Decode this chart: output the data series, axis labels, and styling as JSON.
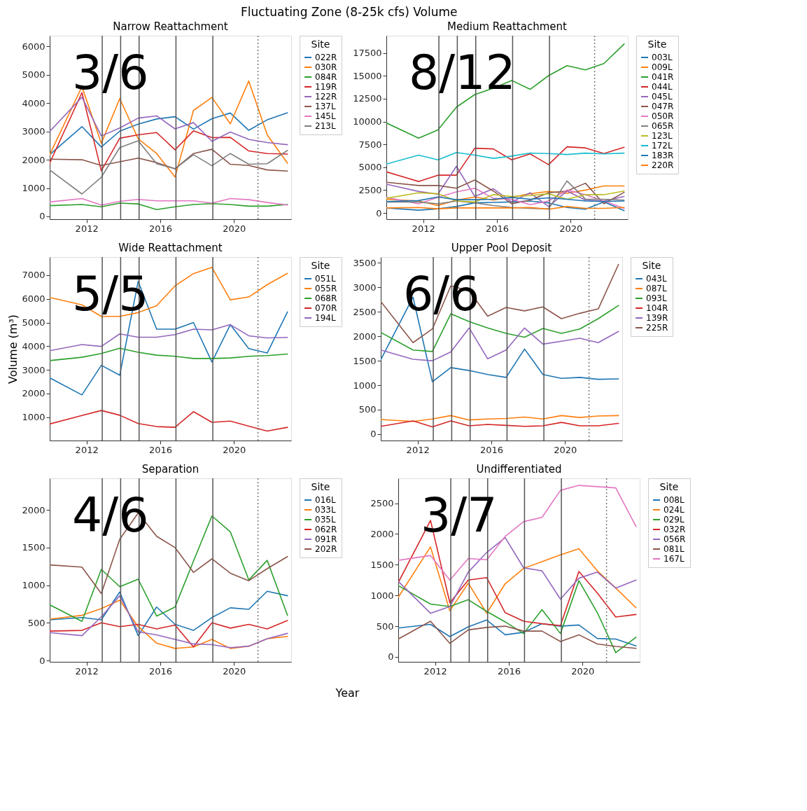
{
  "chart_data": [
    {
      "type": "line",
      "title": "Narrow Reattachment",
      "legend_title": "Site",
      "legend": "right",
      "grid": false,
      "line_style": "solid",
      "x": [
        2010.0,
        2011.75,
        2012.8,
        2013.8,
        2014.8,
        2015.8,
        2016.8,
        2017.8,
        2018.8,
        2019.8,
        2020.8,
        2021.8,
        2022.9
      ],
      "xlim": [
        2010.0,
        2023.1
      ],
      "xticks": [
        2012,
        2016,
        2020
      ],
      "ylim": [
        -100,
        6380
      ],
      "yticks": [
        0,
        1000,
        2000,
        3000,
        4000,
        5000,
        6000
      ],
      "series": [
        {
          "name": "022R",
          "color": "#1f77b4",
          "values": [
            2180,
            3170,
            2450,
            3010,
            3260,
            3440,
            3520,
            3080,
            3450,
            3650,
            3040,
            3410,
            3660
          ]
        },
        {
          "name": "030R",
          "color": "#ff7f0e",
          "values": [
            2180,
            4580,
            2580,
            4160,
            2740,
            2220,
            1390,
            3740,
            4200,
            3270,
            4780,
            2880,
            1880
          ]
        },
        {
          "name": "084R",
          "color": "#2ca02c",
          "values": [
            380,
            420,
            340,
            470,
            440,
            240,
            340,
            420,
            450,
            420,
            360,
            360,
            420
          ]
        },
        {
          "name": "119R",
          "color": "#d62728",
          "values": [
            1880,
            4370,
            1610,
            2760,
            2880,
            2960,
            2350,
            3020,
            2780,
            2790,
            2310,
            2220,
            2200
          ]
        },
        {
          "name": "122R",
          "color": "#9467bd",
          "values": [
            3000,
            4210,
            2840,
            3120,
            3470,
            3550,
            3090,
            3310,
            2650,
            2980,
            2720,
            2610,
            2530
          ]
        },
        {
          "name": "137L",
          "color": "#8c564b",
          "values": [
            2020,
            2000,
            1800,
            1930,
            2060,
            1900,
            1680,
            2220,
            2370,
            1840,
            1800,
            1640,
            1600
          ]
        },
        {
          "name": "145L",
          "color": "#e377c2",
          "values": [
            510,
            630,
            400,
            530,
            600,
            550,
            550,
            550,
            470,
            630,
            590,
            490,
            400
          ]
        },
        {
          "name": "213L",
          "color": "#7f7f7f",
          "values": [
            1640,
            790,
            1380,
            2430,
            2670,
            1860,
            1680,
            2180,
            1790,
            2220,
            1840,
            1860,
            2330
          ]
        }
      ],
      "ref_lines": [
        {
          "axis": "x",
          "value": 2012.85,
          "color": "#555555",
          "line_style": "solid"
        },
        {
          "axis": "x",
          "value": 2013.85,
          "color": "#555555",
          "line_style": "solid"
        },
        {
          "axis": "x",
          "value": 2014.85,
          "color": "#555555",
          "line_style": "solid"
        },
        {
          "axis": "x",
          "value": 2016.85,
          "color": "#555555",
          "line_style": "solid"
        },
        {
          "axis": "x",
          "value": 2018.85,
          "color": "#555555",
          "line_style": "solid"
        },
        {
          "axis": "x",
          "value": 2021.3,
          "color": "#777777",
          "line_style": "dotted"
        }
      ],
      "annotations": [
        "Fluctuating Zone (8-25k cfs) Volume",
        "3/6"
      ]
    },
    {
      "type": "line",
      "title": "Medium Reattachment",
      "legend_title": "Site",
      "legend": "right",
      "grid": false,
      "line_style": "solid",
      "x": [
        2010.0,
        2011.75,
        2012.8,
        2013.8,
        2014.8,
        2015.8,
        2016.8,
        2017.8,
        2018.8,
        2019.8,
        2020.8,
        2021.8,
        2022.9
      ],
      "xlim": [
        2010.0,
        2023.1
      ],
      "xticks": [
        2012,
        2016,
        2020
      ],
      "ylim": [
        -690,
        19400
      ],
      "yticks": [
        0,
        2500,
        5000,
        7500,
        10000,
        12500,
        15000,
        17500
      ],
      "series": [
        {
          "name": "003L",
          "color": "#1f77b4",
          "values": [
            550,
            300,
            450,
            700,
            1100,
            1150,
            1200,
            1300,
            1100,
            600,
            400,
            1200,
            250
          ]
        },
        {
          "name": "009L",
          "color": "#ff7f0e",
          "values": [
            1500,
            1300,
            800,
            1400,
            1750,
            1400,
            1700,
            2100,
            2350,
            2150,
            2500,
            2950,
            2950
          ]
        },
        {
          "name": "041R",
          "color": "#2ca02c",
          "values": [
            9850,
            8180,
            9080,
            11580,
            12960,
            13650,
            14500,
            13530,
            15030,
            16120,
            15660,
            16350,
            18490
          ]
        },
        {
          "name": "044L",
          "color": "#d62728",
          "values": [
            4500,
            3440,
            4130,
            4130,
            7080,
            7010,
            5810,
            6460,
            5280,
            7240,
            7120,
            6500,
            7190
          ]
        },
        {
          "name": "045L",
          "color": "#9467bd",
          "values": [
            3150,
            2350,
            2050,
            5100,
            1800,
            2650,
            1200,
            2200,
            700,
            2400,
            1400,
            1300,
            1800
          ]
        },
        {
          "name": "047R",
          "color": "#8c564b",
          "values": [
            3350,
            3000,
            3000,
            2700,
            3600,
            2400,
            1000,
            1400,
            2200,
            2400,
            3250,
            1000,
            2250
          ]
        },
        {
          "name": "050R",
          "color": "#e377c2",
          "values": [
            1700,
            1000,
            1700,
            2300,
            2700,
            1600,
            1500,
            900,
            1300,
            2500,
            2000,
            1300,
            500
          ]
        },
        {
          "name": "065R",
          "color": "#7f7f7f",
          "values": [
            1200,
            1200,
            1000,
            1300,
            1100,
            800,
            600,
            500,
            450,
            3500,
            1500,
            1500,
            1400
          ]
        },
        {
          "name": "123L",
          "color": "#bcbd22",
          "values": [
            1600,
            2200,
            2100,
            1300,
            1200,
            2000,
            1800,
            1900,
            2100,
            1500,
            2000,
            2000,
            2400
          ]
        },
        {
          "name": "172L",
          "color": "#17becf",
          "values": [
            5350,
            6320,
            5810,
            6620,
            6320,
            5970,
            6220,
            6550,
            6500,
            6390,
            6550,
            6460,
            6550
          ]
        },
        {
          "name": "183R",
          "color": "#1f77b4",
          "values": [
            1250,
            1350,
            1750,
            1450,
            1450,
            1500,
            1700,
            1500,
            1650,
            1500,
            1300,
            1250,
            1300
          ]
        },
        {
          "name": "220R",
          "color": "#ff7f0e",
          "values": [
            550,
            600,
            450,
            550,
            550,
            550,
            550,
            600,
            400,
            700,
            500,
            500,
            600
          ]
        }
      ],
      "ref_lines": [
        {
          "axis": "x",
          "value": 2012.85,
          "color": "#555555",
          "line_style": "solid"
        },
        {
          "axis": "x",
          "value": 2013.85,
          "color": "#555555",
          "line_style": "solid"
        },
        {
          "axis": "x",
          "value": 2014.85,
          "color": "#555555",
          "line_style": "solid"
        },
        {
          "axis": "x",
          "value": 2016.85,
          "color": "#555555",
          "line_style": "solid"
        },
        {
          "axis": "x",
          "value": 2018.85,
          "color": "#555555",
          "line_style": "solid"
        },
        {
          "axis": "x",
          "value": 2021.3,
          "color": "#777777",
          "line_style": "dotted"
        }
      ],
      "annotations": [
        "8/12"
      ]
    },
    {
      "type": "line",
      "title": "Wide Reattachment",
      "ylabel": "Volume (m³)",
      "legend_title": "Site",
      "legend": "right",
      "grid": false,
      "line_style": "solid",
      "x": [
        2010.0,
        2011.75,
        2012.8,
        2013.8,
        2014.8,
        2015.8,
        2016.8,
        2017.8,
        2018.8,
        2019.8,
        2020.8,
        2021.8,
        2022.9
      ],
      "xlim": [
        2010.0,
        2023.1
      ],
      "xticks": [
        2012,
        2016,
        2020
      ],
      "ylim": [
        10,
        7770
      ],
      "yticks": [
        1000,
        2000,
        3000,
        4000,
        5000,
        6000,
        7000
      ],
      "series": [
        {
          "name": "051L",
          "color": "#1f77b4",
          "values": [
            2660,
            1940,
            3190,
            2770,
            6740,
            4720,
            4720,
            5000,
            3330,
            4910,
            3900,
            3710,
            5450
          ]
        },
        {
          "name": "055R",
          "color": "#ff7f0e",
          "values": [
            6060,
            5750,
            5260,
            5260,
            5420,
            5710,
            6550,
            7070,
            7330,
            5960,
            6080,
            6600,
            7080
          ]
        },
        {
          "name": "068R",
          "color": "#2ca02c",
          "values": [
            3390,
            3530,
            3690,
            3910,
            3740,
            3620,
            3570,
            3480,
            3480,
            3500,
            3570,
            3600,
            3670
          ]
        },
        {
          "name": "070R",
          "color": "#d62728",
          "values": [
            710,
            1070,
            1280,
            1080,
            730,
            600,
            570,
            1230,
            780,
            830,
            620,
            410,
            570
          ]
        },
        {
          "name": "194L",
          "color": "#9467bd",
          "values": [
            3810,
            4070,
            3990,
            4520,
            4380,
            4380,
            4490,
            4720,
            4690,
            4910,
            4440,
            4350,
            4370
          ]
        }
      ],
      "ref_lines": [
        {
          "axis": "x",
          "value": 2012.85,
          "color": "#555555",
          "line_style": "solid"
        },
        {
          "axis": "x",
          "value": 2013.85,
          "color": "#555555",
          "line_style": "solid"
        },
        {
          "axis": "x",
          "value": 2014.85,
          "color": "#555555",
          "line_style": "solid"
        },
        {
          "axis": "x",
          "value": 2016.85,
          "color": "#555555",
          "line_style": "solid"
        },
        {
          "axis": "x",
          "value": 2018.85,
          "color": "#555555",
          "line_style": "solid"
        },
        {
          "axis": "x",
          "value": 2021.3,
          "color": "#777777",
          "line_style": "dotted"
        }
      ],
      "annotations": [
        "5/5"
      ]
    },
    {
      "type": "line",
      "title": "Upper Pool Deposit",
      "legend_title": "Site",
      "legend": "right",
      "grid": false,
      "line_style": "solid",
      "x": [
        2010.0,
        2011.75,
        2012.8,
        2013.8,
        2014.8,
        2015.8,
        2016.8,
        2017.8,
        2018.8,
        2019.8,
        2020.8,
        2021.8,
        2022.9
      ],
      "xlim": [
        2010.0,
        2023.1
      ],
      "xticks": [
        2012,
        2016,
        2020
      ],
      "ylim": [
        -130,
        3620
      ],
      "yticks": [
        0,
        500,
        1000,
        1500,
        2000,
        2500,
        3000,
        3500
      ],
      "series": [
        {
          "name": "043L",
          "color": "#1f77b4",
          "values": [
            1520,
            2800,
            1070,
            1360,
            1300,
            1220,
            1160,
            1740,
            1220,
            1140,
            1160,
            1120,
            1130
          ]
        },
        {
          "name": "087L",
          "color": "#ff7f0e",
          "values": [
            300,
            260,
            310,
            380,
            290,
            310,
            320,
            350,
            310,
            380,
            340,
            370,
            380
          ]
        },
        {
          "name": "093L",
          "color": "#2ca02c",
          "values": [
            2080,
            1720,
            1690,
            2460,
            2300,
            2170,
            2060,
            1980,
            2160,
            2060,
            2150,
            2360,
            2630
          ]
        },
        {
          "name": "104R",
          "color": "#d62728",
          "values": [
            160,
            270,
            150,
            270,
            170,
            200,
            180,
            160,
            170,
            240,
            170,
            170,
            220
          ]
        },
        {
          "name": "139R",
          "color": "#9467bd",
          "values": [
            1720,
            1530,
            1500,
            1680,
            2170,
            1540,
            1720,
            2170,
            1840,
            1900,
            1960,
            1870,
            2100
          ]
        },
        {
          "name": "225R",
          "color": "#8c564b",
          "values": [
            2710,
            1870,
            2150,
            3030,
            2930,
            2410,
            2590,
            2520,
            2600,
            2360,
            2470,
            2560,
            3470
          ]
        }
      ],
      "ref_lines": [
        {
          "axis": "x",
          "value": 2012.85,
          "color": "#555555",
          "line_style": "solid"
        },
        {
          "axis": "x",
          "value": 2013.85,
          "color": "#555555",
          "line_style": "solid"
        },
        {
          "axis": "x",
          "value": 2014.85,
          "color": "#555555",
          "line_style": "solid"
        },
        {
          "axis": "x",
          "value": 2016.85,
          "color": "#555555",
          "line_style": "solid"
        },
        {
          "axis": "x",
          "value": 2018.85,
          "color": "#555555",
          "line_style": "solid"
        },
        {
          "axis": "x",
          "value": 2021.3,
          "color": "#777777",
          "line_style": "dotted"
        }
      ],
      "annotations": [
        "6/6"
      ]
    },
    {
      "type": "line",
      "title": "Separation",
      "xlabel": "Year",
      "legend_title": "Site",
      "legend": "right",
      "grid": false,
      "line_style": "solid",
      "x": [
        2010.0,
        2011.75,
        2012.8,
        2013.8,
        2014.8,
        2015.8,
        2016.8,
        2017.8,
        2018.8,
        2019.8,
        2020.8,
        2021.8,
        2022.9
      ],
      "xlim": [
        2010.0,
        2023.1
      ],
      "xticks": [
        2012,
        2016,
        2020
      ],
      "ylim": [
        -18,
        2420
      ],
      "yticks": [
        0,
        500,
        1000,
        1500,
        2000
      ],
      "series": [
        {
          "name": "016L",
          "color": "#1f77b4",
          "values": [
            540,
            570,
            540,
            910,
            330,
            710,
            480,
            400,
            570,
            700,
            680,
            920,
            860
          ]
        },
        {
          "name": "033L",
          "color": "#ff7f0e",
          "values": [
            550,
            600,
            690,
            800,
            450,
            230,
            160,
            180,
            280,
            160,
            190,
            290,
            320
          ]
        },
        {
          "name": "035L",
          "color": "#2ca02c",
          "values": [
            740,
            520,
            1210,
            980,
            1080,
            590,
            710,
            1320,
            1920,
            1710,
            1070,
            1330,
            600
          ]
        },
        {
          "name": "062R",
          "color": "#d62728",
          "values": [
            390,
            400,
            500,
            450,
            480,
            420,
            470,
            180,
            500,
            430,
            480,
            420,
            530
          ]
        },
        {
          "name": "091R",
          "color": "#9467bd",
          "values": [
            370,
            330,
            580,
            860,
            380,
            340,
            280,
            220,
            210,
            170,
            190,
            290,
            360
          ]
        },
        {
          "name": "202R",
          "color": "#8c564b",
          "values": [
            1270,
            1240,
            890,
            1610,
            1960,
            1650,
            1500,
            1170,
            1350,
            1160,
            1060,
            1220,
            1380
          ]
        }
      ],
      "ref_lines": [
        {
          "axis": "x",
          "value": 2012.85,
          "color": "#555555",
          "line_style": "solid"
        },
        {
          "axis": "x",
          "value": 2013.85,
          "color": "#555555",
          "line_style": "solid"
        },
        {
          "axis": "x",
          "value": 2014.85,
          "color": "#555555",
          "line_style": "solid"
        },
        {
          "axis": "x",
          "value": 2016.85,
          "color": "#555555",
          "line_style": "solid"
        },
        {
          "axis": "x",
          "value": 2018.85,
          "color": "#555555",
          "line_style": "solid"
        },
        {
          "axis": "x",
          "value": 2021.3,
          "color": "#777777",
          "line_style": "dotted"
        }
      ],
      "annotations": [
        "4/6"
      ]
    },
    {
      "type": "line",
      "title": "Undifferentiated",
      "legend_title": "Site",
      "legend": "right",
      "grid": false,
      "line_style": "solid",
      "x": [
        2010.0,
        2011.75,
        2012.8,
        2013.8,
        2014.8,
        2015.8,
        2016.8,
        2017.8,
        2018.8,
        2019.8,
        2020.8,
        2021.8,
        2022.9
      ],
      "xlim": [
        2010.0,
        2023.1
      ],
      "xticks": [
        2012,
        2016,
        2020
      ],
      "ylim": [
        -80,
        2905
      ],
      "yticks": [
        0,
        500,
        1000,
        1500,
        2000,
        2500
      ],
      "series": [
        {
          "name": "008L",
          "color": "#1f77b4",
          "values": [
            470,
            530,
            330,
            490,
            600,
            360,
            400,
            540,
            500,
            520,
            300,
            290,
            180
          ]
        },
        {
          "name": "024L",
          "color": "#ff7f0e",
          "values": [
            970,
            1790,
            750,
            1200,
            710,
            1190,
            1440,
            1550,
            1660,
            1760,
            1400,
            1120,
            800
          ]
        },
        {
          "name": "029L",
          "color": "#2ca02c",
          "values": [
            1160,
            860,
            820,
            930,
            740,
            570,
            380,
            770,
            380,
            1240,
            720,
            70,
            320
          ]
        },
        {
          "name": "032R",
          "color": "#d62728",
          "values": [
            1210,
            2220,
            880,
            1250,
            1290,
            720,
            580,
            540,
            510,
            1390,
            1040,
            650,
            690
          ]
        },
        {
          "name": "056R",
          "color": "#9467bd",
          "values": [
            1230,
            710,
            820,
            1380,
            1700,
            1940,
            1450,
            1400,
            940,
            1280,
            1380,
            1120,
            1250
          ]
        },
        {
          "name": "081L",
          "color": "#8c564b",
          "values": [
            290,
            580,
            220,
            440,
            480,
            500,
            420,
            420,
            250,
            360,
            210,
            170,
            140
          ]
        },
        {
          "name": "167L",
          "color": "#e377c2",
          "values": [
            1570,
            1650,
            1250,
            1600,
            1580,
            1960,
            2200,
            2270,
            2710,
            2790,
            2770,
            2750,
            2120
          ]
        }
      ],
      "ref_lines": [
        {
          "axis": "x",
          "value": 2012.85,
          "color": "#555555",
          "line_style": "solid"
        },
        {
          "axis": "x",
          "value": 2013.85,
          "color": "#555555",
          "line_style": "solid"
        },
        {
          "axis": "x",
          "value": 2014.85,
          "color": "#555555",
          "line_style": "solid"
        },
        {
          "axis": "x",
          "value": 2016.85,
          "color": "#555555",
          "line_style": "solid"
        },
        {
          "axis": "x",
          "value": 2018.85,
          "color": "#555555",
          "line_style": "solid"
        },
        {
          "axis": "x",
          "value": 2021.3,
          "color": "#777777",
          "line_style": "dotted"
        }
      ],
      "annotations": [
        "3/7"
      ]
    }
  ]
}
